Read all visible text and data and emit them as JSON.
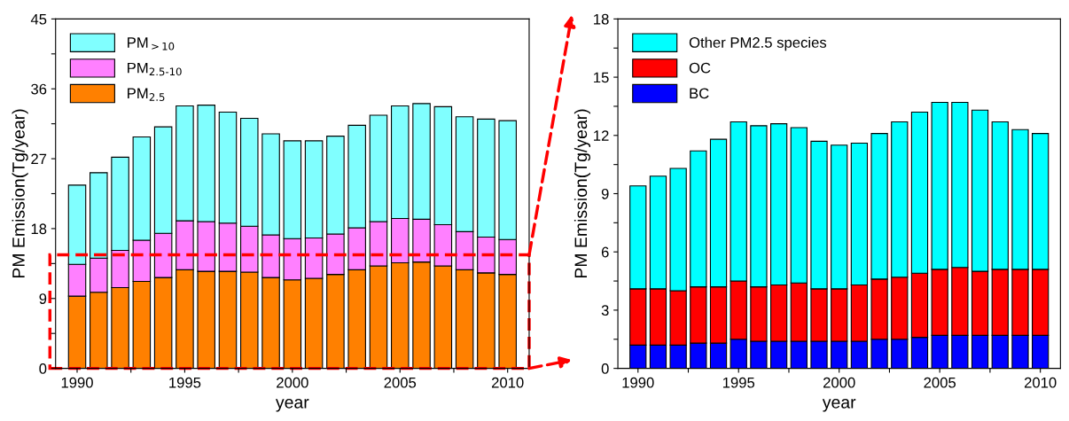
{
  "chart_data": [
    {
      "type": "bar",
      "stacked": true,
      "xlabel": "year",
      "ylabel": "PM Emission(Tg/year)",
      "x": [
        1990,
        1991,
        1992,
        1993,
        1994,
        1995,
        1996,
        1997,
        1998,
        1999,
        2000,
        2001,
        2002,
        2003,
        2004,
        2005,
        2006,
        2007,
        2008,
        2009,
        2010
      ],
      "series": [
        {
          "name": "PM$_{2.5}$",
          "color": "#ff8000",
          "values": [
            9.3,
            9.8,
            10.4,
            11.2,
            11.7,
            12.7,
            12.5,
            12.5,
            12.4,
            11.7,
            11.4,
            11.6,
            12.1,
            12.7,
            13.2,
            13.6,
            13.7,
            13.2,
            12.7,
            12.3,
            12.1
          ]
        },
        {
          "name": "PM$_{2.5-10}$",
          "color": "#ff80ff",
          "values": [
            4.1,
            4.4,
            4.8,
            5.3,
            5.7,
            6.3,
            6.4,
            6.2,
            5.9,
            5.5,
            5.3,
            5.2,
            5.2,
            5.4,
            5.7,
            5.7,
            5.5,
            5.3,
            4.9,
            4.6,
            4.5
          ]
        },
        {
          "name": "PM$_{>10}$",
          "color": "#80ffff",
          "values": [
            10.2,
            11.0,
            12.0,
            13.3,
            13.7,
            14.8,
            15.0,
            14.3,
            13.9,
            13.0,
            12.6,
            12.5,
            12.6,
            13.2,
            13.7,
            14.5,
            14.9,
            15.2,
            14.8,
            15.2,
            15.3
          ]
        }
      ],
      "xlim": [
        1989,
        2011
      ],
      "xticks": [
        1990,
        {
          "value": 1992.5,
          "label": null
        },
        1995,
        {
          "value": 1997.5,
          "label": null
        },
        2000,
        {
          "value": 2002.5,
          "label": null
        },
        2005,
        {
          "value": 2007.5,
          "label": null
        },
        2010
      ],
      "ylim": [
        0,
        45
      ],
      "yticks": [
        0,
        {
          "value": 4.5,
          "label": null
        },
        9,
        {
          "value": 13.5,
          "label": null
        },
        18,
        {
          "value": 22.5,
          "label": null
        },
        27,
        {
          "value": 31.5,
          "label": null
        },
        36,
        {
          "value": 40.5,
          "label": null
        },
        45
      ],
      "grid": false,
      "legend": "top left"
    },
    {
      "type": "bar",
      "stacked": true,
      "xlabel": "year",
      "ylabel": "PM Emission(Tg/year)",
      "x": [
        1990,
        1991,
        1992,
        1993,
        1994,
        1995,
        1996,
        1997,
        1998,
        1999,
        2000,
        2001,
        2002,
        2003,
        2004,
        2005,
        2006,
        2007,
        2008,
        2009,
        2010
      ],
      "series": [
        {
          "name": "BC",
          "color": "#0000ff",
          "values": [
            1.2,
            1.2,
            1.2,
            1.3,
            1.3,
            1.5,
            1.4,
            1.4,
            1.4,
            1.4,
            1.4,
            1.4,
            1.5,
            1.5,
            1.6,
            1.7,
            1.7,
            1.7,
            1.7,
            1.7,
            1.7
          ]
        },
        {
          "name": "OC",
          "color": "#ff0000",
          "values": [
            2.9,
            2.9,
            2.8,
            2.9,
            2.9,
            3.0,
            2.8,
            2.9,
            3.0,
            2.7,
            2.7,
            2.9,
            3.1,
            3.2,
            3.3,
            3.4,
            3.5,
            3.3,
            3.4,
            3.4,
            3.4
          ]
        },
        {
          "name": "Other PM2.5 species",
          "color": "#00ffff",
          "values": [
            5.3,
            5.8,
            6.3,
            7.0,
            7.6,
            8.2,
            8.3,
            8.3,
            8.0,
            7.6,
            7.4,
            7.3,
            7.5,
            8.0,
            8.3,
            8.6,
            8.5,
            8.3,
            7.6,
            7.2,
            7.0
          ]
        }
      ],
      "xlim": [
        1989,
        2011
      ],
      "xticks": [
        1990,
        {
          "value": 1992.5,
          "label": null
        },
        1995,
        {
          "value": 1997.5,
          "label": null
        },
        2000,
        {
          "value": 2002.5,
          "label": null
        },
        2005,
        {
          "value": 2007.5,
          "label": null
        },
        2010
      ],
      "ylim": [
        0,
        18
      ],
      "yticks": [
        0,
        {
          "value": 1.5,
          "label": null
        },
        3,
        {
          "value": 4.5,
          "label": null
        },
        6,
        {
          "value": 7.5,
          "label": null
        },
        9,
        {
          "value": 10.5,
          "label": null
        },
        12,
        {
          "value": 13.5,
          "label": null
        },
        15,
        {
          "value": 16.5,
          "label": null
        },
        18
      ],
      "grid": false,
      "legend": "top left"
    }
  ]
}
